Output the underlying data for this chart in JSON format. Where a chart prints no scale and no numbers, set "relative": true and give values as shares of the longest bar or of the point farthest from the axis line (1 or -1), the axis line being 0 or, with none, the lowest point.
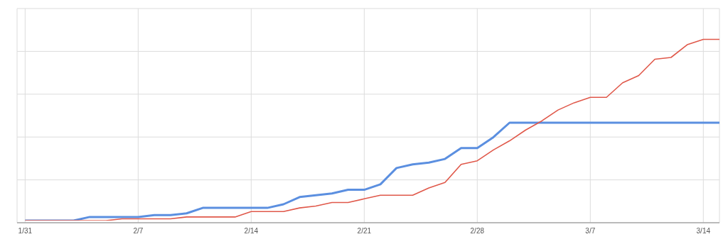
{
  "chart_data": {
    "type": "line",
    "relative": true,
    "grid": true,
    "marker": "none",
    "line_style": "solid",
    "x": [
      "--01-31",
      "--02-01",
      "--02-02",
      "--02-03",
      "--02-04",
      "--02-05",
      "--02-06",
      "--02-07",
      "--02-08",
      "--02-09",
      "--02-10",
      "--02-11",
      "--02-12",
      "--02-13",
      "--02-14",
      "--02-15",
      "--02-16",
      "--02-17",
      "--02-18",
      "--02-19",
      "--02-20",
      "--02-21",
      "--02-22",
      "--02-23",
      "--02-24",
      "--02-25",
      "--02-26",
      "--02-27",
      "--02-28",
      "--03-01",
      "--03-02",
      "--03-03",
      "--03-04",
      "--03-05",
      "--03-06",
      "--03-07",
      "--03-08",
      "--03-09",
      "--03-10",
      "--03-11",
      "--03-12",
      "--03-13",
      "--03-14",
      "--03-15"
    ],
    "xlim": [
      "--01-30T12:00",
      "--03-15"
    ],
    "xticks": [
      {
        "value": "--01-31",
        "label": "1/31"
      },
      {
        "value": "--02-07",
        "label": "2/7"
      },
      {
        "value": "--02-14",
        "label": "2/14"
      },
      {
        "value": "--02-21",
        "label": "2/21"
      },
      {
        "value": "--02-28",
        "label": "2/28"
      },
      {
        "value": "--03-07",
        "label": "3/7"
      },
      {
        "value": "--03-14",
        "label": "3/14"
      }
    ],
    "series": [
      {
        "color": "#5b8fe0",
        "values": [
          0,
          0,
          0,
          0,
          0.02,
          0.02,
          0.02,
          0.02,
          0.03,
          0.03,
          0.04,
          0.07,
          0.07,
          0.07,
          0.07,
          0.07,
          0.09,
          0.13,
          0.14,
          0.15,
          0.17,
          0.17,
          0.2,
          0.29,
          0.31,
          0.32,
          0.34,
          0.4,
          0.4,
          0.46,
          0.54,
          0.54,
          0.54,
          0.54,
          0.54,
          0.54,
          0.54,
          0.54,
          0.54,
          0.54,
          0.54,
          0.54,
          0.54,
          0.54
        ]
      },
      {
        "color": "#e0584a",
        "values": [
          0,
          0,
          0,
          0,
          0,
          0,
          0.01,
          0.01,
          0.01,
          0.01,
          0.02,
          0.02,
          0.02,
          0.02,
          0.05,
          0.05,
          0.05,
          0.07,
          0.08,
          0.1,
          0.1,
          0.12,
          0.14,
          0.14,
          0.14,
          0.18,
          0.21,
          0.31,
          0.33,
          0.39,
          0.44,
          0.5,
          0.55,
          0.61,
          0.65,
          0.68,
          0.68,
          0.76,
          0.8,
          0.89,
          0.9,
          0.97,
          1,
          1
        ]
      }
    ]
  }
}
